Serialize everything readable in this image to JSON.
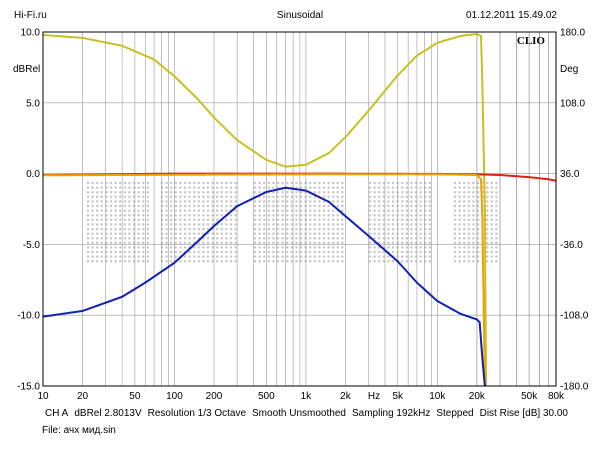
{
  "header": {
    "left": "Hi-Fi.ru",
    "center": "Sinusoidal",
    "right": "01.12.2011 15.49.02"
  },
  "footer": {
    "line1": [
      "CH A",
      "dBRel 2.8013V",
      "Resolution 1/3 Octave",
      "Smooth Unsmoothed",
      "Sampling 192kHz",
      "Stepped",
      "Dist Rise [dB] 30.00"
    ],
    "line2": "File: ачх мид.sin"
  },
  "chart_data": {
    "type": "line",
    "brand": "CLIO",
    "left_axis": {
      "label": "dBRel",
      "range": [
        -15,
        10
      ],
      "ticks": [
        "10.0",
        "5.0",
        "0.0",
        "-5.0",
        "-10.0",
        "-15.0"
      ]
    },
    "right_axis": {
      "label": "Deg",
      "range": [
        -180,
        180
      ],
      "ticks": [
        "180.0",
        "108.0",
        "36.0",
        "-36.0",
        "-108.0",
        "-180.0"
      ]
    },
    "x_axis": {
      "scale": "log",
      "range": [
        10,
        80000
      ],
      "unit_label": "Hz",
      "ticks": [
        {
          "v": 10,
          "t": "10"
        },
        {
          "v": 20,
          "t": "20"
        },
        {
          "v": 50,
          "t": "50"
        },
        {
          "v": 100,
          "t": "100"
        },
        {
          "v": 200,
          "t": "200"
        },
        {
          "v": 500,
          "t": "500"
        },
        {
          "v": 1000,
          "t": "1k"
        },
        {
          "v": 2000,
          "t": "2k"
        },
        {
          "v": 5000,
          "t": "5k"
        },
        {
          "v": 10000,
          "t": "10k"
        },
        {
          "v": 20000,
          "t": "20k"
        },
        {
          "v": 50000,
          "t": "50k"
        },
        {
          "v": 80000,
          "t": "80k"
        }
      ]
    },
    "grid": true,
    "series": [
      {
        "color": "#c8c020",
        "axis": "right",
        "points": [
          [
            10,
            177
          ],
          [
            20,
            174
          ],
          [
            40,
            166
          ],
          [
            70,
            152
          ],
          [
            100,
            135
          ],
          [
            150,
            112
          ],
          [
            200,
            93
          ],
          [
            300,
            70
          ],
          [
            500,
            50
          ],
          [
            700,
            43
          ],
          [
            1000,
            45
          ],
          [
            1500,
            57
          ],
          [
            2000,
            73
          ],
          [
            3000,
            100
          ],
          [
            5000,
            136
          ],
          [
            7000,
            156
          ],
          [
            10000,
            169
          ],
          [
            15000,
            176
          ],
          [
            20000,
            178
          ],
          [
            21500,
            176
          ],
          [
            22000,
            130
          ],
          [
            23000,
            0
          ],
          [
            23500,
            -180
          ]
        ]
      },
      {
        "color": "#e02010",
        "axis": "left",
        "points": [
          [
            10,
            -0.1
          ],
          [
            100,
            0
          ],
          [
            1000,
            0
          ],
          [
            10000,
            -0.02
          ],
          [
            20000,
            -0.05
          ],
          [
            30000,
            -0.1
          ],
          [
            50000,
            -0.25
          ],
          [
            70000,
            -0.4
          ],
          [
            80000,
            -0.5
          ]
        ]
      },
      {
        "color": "#f0a000",
        "axis": "left",
        "points": [
          [
            10,
            -0.12
          ],
          [
            1000,
            -0.05
          ],
          [
            10000,
            -0.05
          ],
          [
            20000,
            -0.1
          ],
          [
            21500,
            -0.4
          ],
          [
            22000,
            -3
          ],
          [
            22500,
            -9
          ],
          [
            23000,
            -15
          ]
        ]
      },
      {
        "color": "#1020b0",
        "axis": "left",
        "points": [
          [
            10,
            -10.1
          ],
          [
            20,
            -9.7
          ],
          [
            40,
            -8.7
          ],
          [
            60,
            -7.7
          ],
          [
            100,
            -6.3
          ],
          [
            150,
            -4.8
          ],
          [
            200,
            -3.7
          ],
          [
            300,
            -2.3
          ],
          [
            500,
            -1.3
          ],
          [
            700,
            -1.0
          ],
          [
            1000,
            -1.2
          ],
          [
            1500,
            -2.0
          ],
          [
            2000,
            -3.0
          ],
          [
            3000,
            -4.4
          ],
          [
            5000,
            -6.2
          ],
          [
            7000,
            -7.7
          ],
          [
            10000,
            -9.0
          ],
          [
            15000,
            -9.9
          ],
          [
            20000,
            -10.3
          ],
          [
            21000,
            -10.5
          ],
          [
            22000,
            -13
          ],
          [
            23000,
            -15
          ]
        ]
      }
    ]
  }
}
